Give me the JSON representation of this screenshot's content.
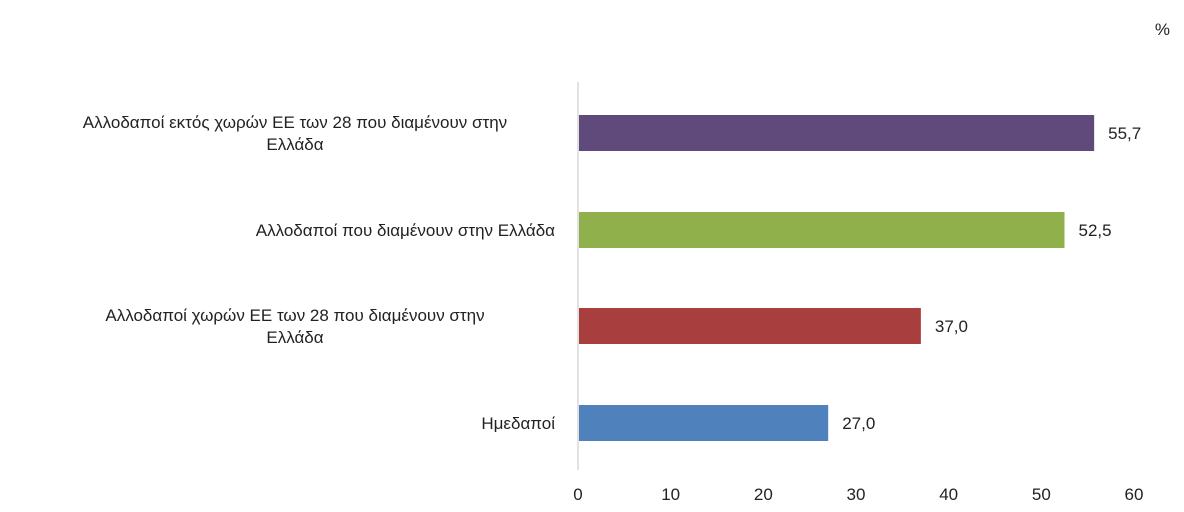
{
  "chart_data": {
    "type": "bar",
    "orientation": "horizontal",
    "unit_label": "%",
    "categories": [
      [
        "Αλλοδαποί εκτός χωρών ΕΕ των 28 που διαμένουν στην",
        "Ελλάδα"
      ],
      [
        "Αλλοδαποί που διαμένουν στην Ελλάδα"
      ],
      [
        "Αλλοδαποί  χωρών ΕΕ των 28 που διαμένουν στην",
        "Ελλάδα"
      ],
      [
        "Ημεδαποί"
      ]
    ],
    "values": [
      55.7,
      52.5,
      37.0,
      27.0
    ],
    "value_labels": [
      "55,7",
      "52,5",
      "37,0",
      "27,0"
    ],
    "colors": [
      "#604A7B",
      "#8FB04A",
      "#A83E3E",
      "#4F81BD"
    ],
    "xlim": [
      0,
      60
    ],
    "xticks": [
      0,
      10,
      20,
      30,
      40,
      50,
      60
    ],
    "title": "",
    "xlabel": "",
    "ylabel": "",
    "grid": false,
    "legend": "none"
  }
}
